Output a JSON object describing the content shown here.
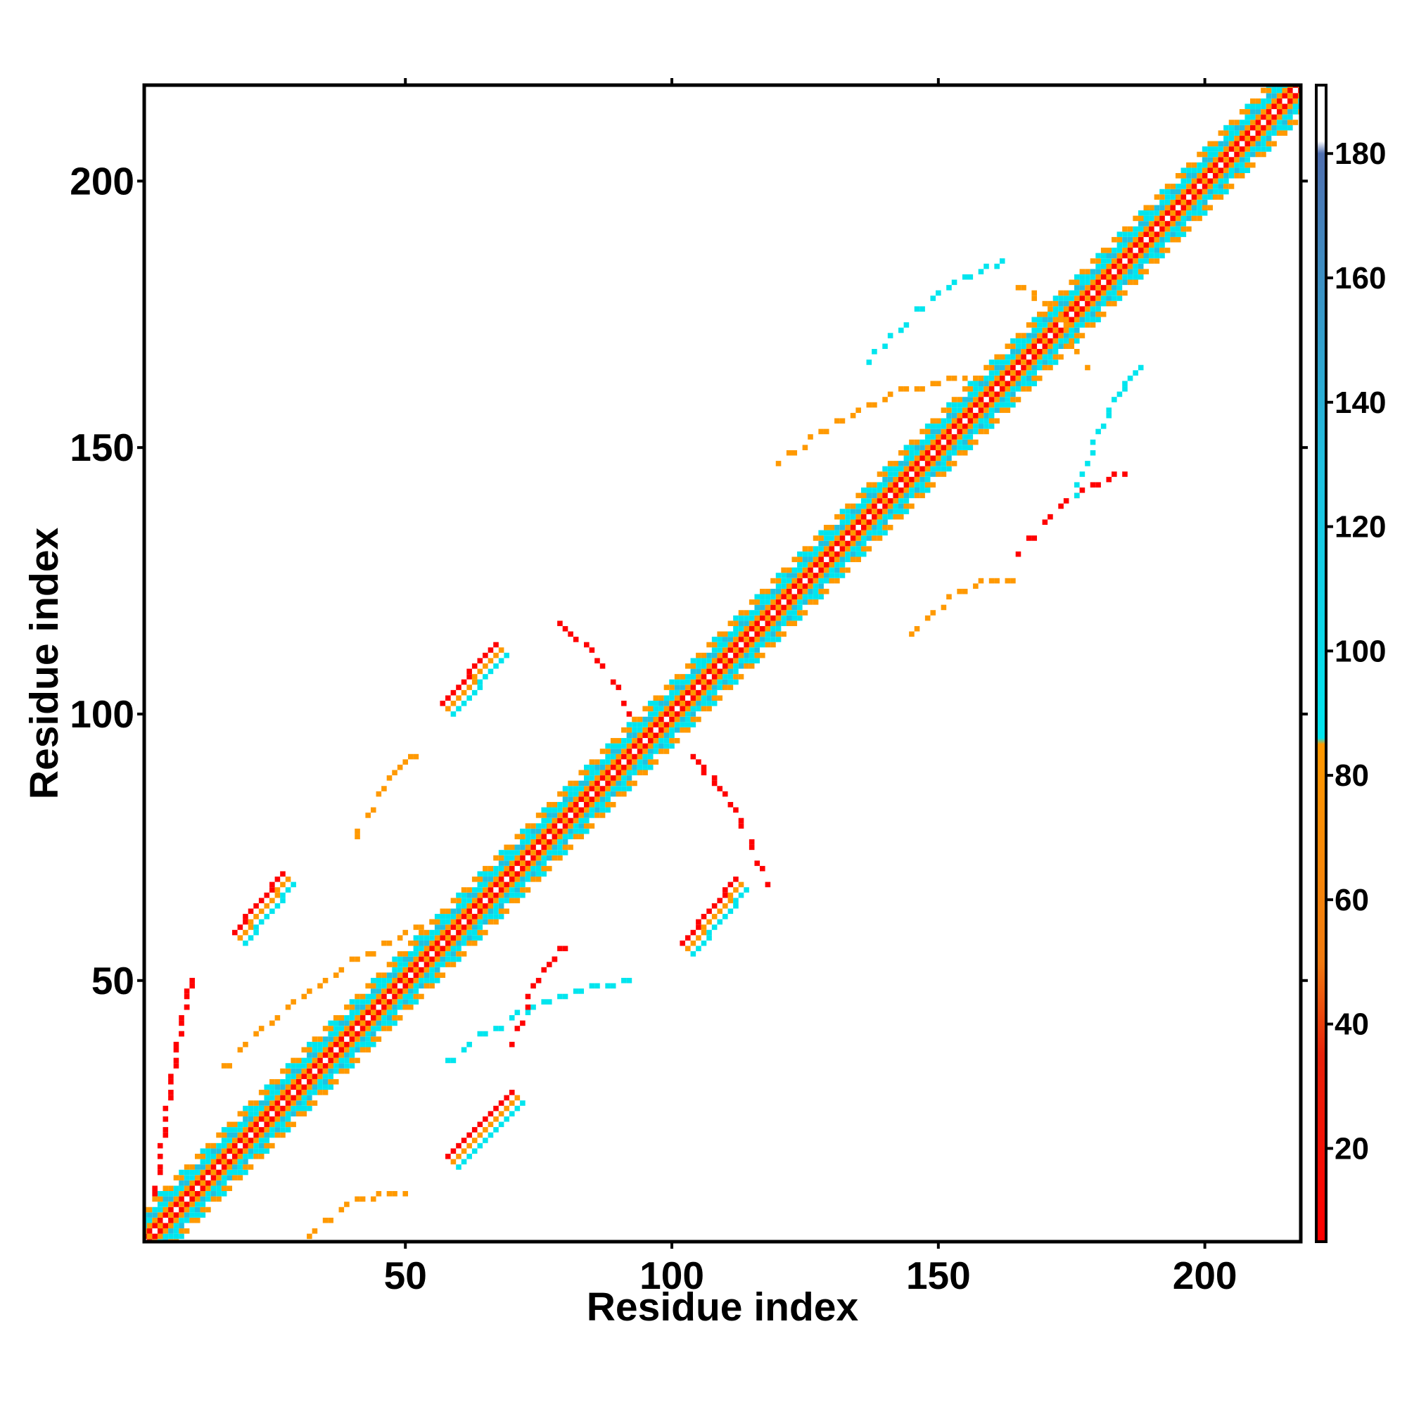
{
  "chart_data": {
    "type": "heatmap",
    "title": "",
    "xlabel": "Residue index",
    "ylabel": "Residue index",
    "xlim": [
      1,
      218
    ],
    "ylim": [
      1,
      218
    ],
    "xticks": [
      50,
      100,
      150,
      200
    ],
    "yticks": [
      50,
      100,
      150,
      200
    ],
    "grid": false,
    "colorbar": {
      "range": [
        5,
        191
      ],
      "ticks": [
        20,
        40,
        60,
        80,
        100,
        120,
        140,
        160,
        180
      ],
      "stops": [
        {
          "value": 5,
          "color": "#ff0000"
        },
        {
          "value": 35,
          "color": "#e8220a"
        },
        {
          "value": 50,
          "color": "#f07a10"
        },
        {
          "value": 85,
          "color": "#ff9900"
        },
        {
          "value": 86,
          "color": "#00e5ee"
        },
        {
          "value": 130,
          "color": "#20c0e0"
        },
        {
          "value": 180,
          "color": "#4f6fb0"
        },
        {
          "value": 182,
          "color": "#ffffff"
        },
        {
          "value": 191,
          "color": "#ffffff"
        }
      ]
    },
    "diagonal_band": {
      "range": [
        1,
        218
      ],
      "colors": [
        "#ff0000",
        "#ff9900",
        "#00e5ee",
        "#20c0e0"
      ]
    },
    "features": [
      {
        "kind": "strand",
        "x1": 18,
        "y1": 59,
        "x2": 27,
        "y2": 70,
        "color": "#ff0000"
      },
      {
        "kind": "strand",
        "x1": 19,
        "y1": 58,
        "x2": 28,
        "y2": 69,
        "color": "#ff9900"
      },
      {
        "kind": "strand",
        "x1": 20,
        "y1": 57,
        "x2": 29,
        "y2": 68,
        "color": "#00e5ee"
      },
      {
        "kind": "strand",
        "x1": 58,
        "y1": 17,
        "x2": 70,
        "y2": 29,
        "color": "#ff0000"
      },
      {
        "kind": "strand",
        "x1": 59,
        "y1": 16,
        "x2": 71,
        "y2": 28,
        "color": "#ff9900"
      },
      {
        "kind": "strand",
        "x1": 60,
        "y1": 15,
        "x2": 72,
        "y2": 27,
        "color": "#00e5ee"
      },
      {
        "kind": "strand",
        "x1": 57,
        "y1": 102,
        "x2": 67,
        "y2": 113,
        "color": "#ff0000"
      },
      {
        "kind": "strand",
        "x1": 58,
        "y1": 101,
        "x2": 68,
        "y2": 112,
        "color": "#ff9900"
      },
      {
        "kind": "strand",
        "x1": 59,
        "y1": 100,
        "x2": 69,
        "y2": 111,
        "color": "#00e5ee"
      },
      {
        "kind": "strand",
        "x1": 102,
        "y1": 57,
        "x2": 112,
        "y2": 69,
        "color": "#ff0000"
      },
      {
        "kind": "strand",
        "x1": 103,
        "y1": 56,
        "x2": 113,
        "y2": 68,
        "color": "#ff9900"
      },
      {
        "kind": "strand",
        "x1": 104,
        "y1": 55,
        "x2": 114,
        "y2": 67,
        "color": "#00e5ee"
      },
      {
        "kind": "arc",
        "x1": 15,
        "y1": 33,
        "x2": 55,
        "y2": 61,
        "color": "#ff9900"
      },
      {
        "kind": "arc",
        "x1": 3,
        "y1": 10,
        "x2": 10,
        "y2": 50,
        "color": "#ff0000"
      },
      {
        "kind": "arc",
        "x1": 30,
        "y1": 0,
        "x2": 50,
        "y2": 10,
        "color": "#ff9900"
      },
      {
        "kind": "arc",
        "x1": 40,
        "y1": 75,
        "x2": 52,
        "y2": 92,
        "color": "#ff9900"
      },
      {
        "kind": "arc",
        "x1": 58,
        "y1": 35,
        "x2": 93,
        "y2": 50,
        "color": "#00e5ee"
      },
      {
        "kind": "arc",
        "x1": 70,
        "y1": 38,
        "x2": 80,
        "y2": 56,
        "color": "#ff0000"
      },
      {
        "kind": "arc",
        "x1": 78,
        "y1": 117,
        "x2": 92,
        "y2": 100,
        "color": "#ff0000"
      },
      {
        "kind": "arc",
        "x1": 104,
        "y1": 92,
        "x2": 118,
        "y2": 68,
        "color": "#ff0000"
      },
      {
        "kind": "arc",
        "x1": 120,
        "y1": 147,
        "x2": 155,
        "y2": 163,
        "color": "#ff9900"
      },
      {
        "kind": "arc",
        "x1": 136,
        "y1": 165,
        "x2": 162,
        "y2": 185,
        "color": "#00e5ee"
      },
      {
        "kind": "arc",
        "x1": 145,
        "y1": 115,
        "x2": 165,
        "y2": 125,
        "color": "#ff9900"
      },
      {
        "kind": "arc",
        "x1": 165,
        "y1": 130,
        "x2": 185,
        "y2": 145,
        "color": "#ff0000"
      },
      {
        "kind": "arc",
        "x1": 175,
        "y1": 140,
        "x2": 188,
        "y2": 165,
        "color": "#00e5ee"
      },
      {
        "kind": "arc",
        "x1": 165,
        "y1": 180,
        "x2": 178,
        "y2": 165,
        "color": "#ff9900"
      }
    ]
  }
}
